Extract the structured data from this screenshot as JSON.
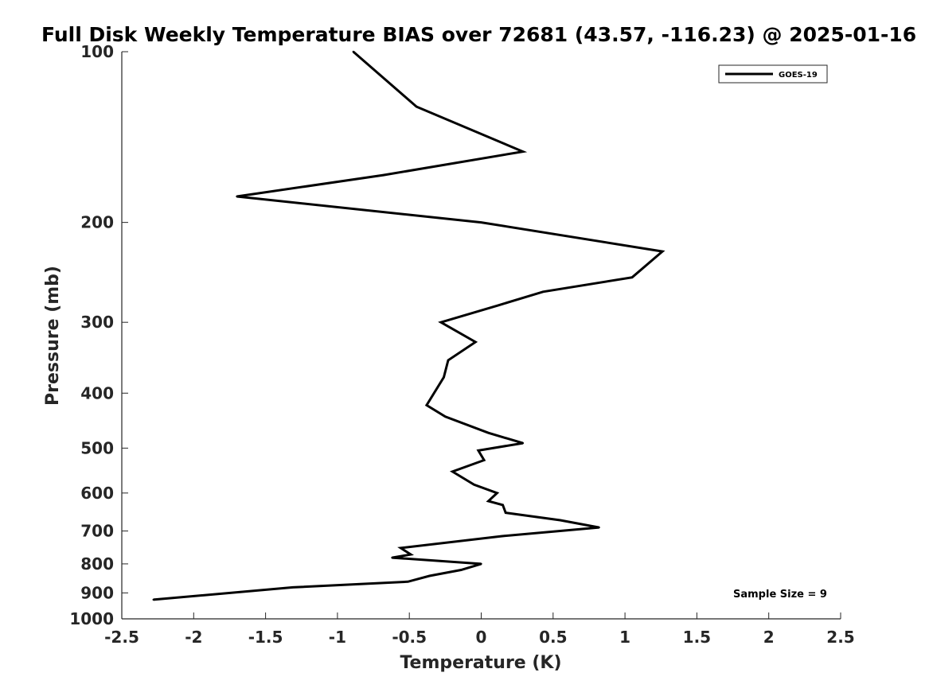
{
  "chart_data": {
    "type": "line",
    "title": "Full Disk Weekly Temperature BIAS over 72681 (43.57, -116.23) @ 2025-01-16",
    "xlabel": "Temperature (K)",
    "ylabel": "Pressure (mb)",
    "xlim": [
      -2.5,
      2.5
    ],
    "ylim": [
      1000,
      100
    ],
    "y_scale": "log",
    "x_ticks": [
      -2.5,
      -2,
      -1.5,
      -1,
      -0.5,
      0,
      0.5,
      1,
      1.5,
      2,
      2.5
    ],
    "x_tick_labels": [
      "-2.5",
      "-2",
      "-1.5",
      "-1",
      "-0.5",
      "0",
      "0.5",
      "1",
      "1.5",
      "2",
      "2.5"
    ],
    "y_ticks": [
      100,
      200,
      300,
      400,
      500,
      600,
      700,
      800,
      900,
      1000
    ],
    "y_tick_labels": [
      "100",
      "200",
      "300",
      "400",
      "500",
      "600",
      "700",
      "800",
      "900",
      "1000"
    ],
    "grid": false,
    "legend_position": "top-right",
    "annotation": "Sample Size = 9",
    "series": [
      {
        "name": "GOES-19",
        "color": "#000000",
        "points": [
          {
            "x": -0.89,
            "p": 100
          },
          {
            "x": -0.45,
            "p": 125
          },
          {
            "x": 0.29,
            "p": 150
          },
          {
            "x": -0.68,
            "p": 165
          },
          {
            "x": -1.7,
            "p": 180
          },
          {
            "x": 0.0,
            "p": 200
          },
          {
            "x": 1.26,
            "p": 225
          },
          {
            "x": 1.05,
            "p": 250
          },
          {
            "x": 0.43,
            "p": 265
          },
          {
            "x": 0.12,
            "p": 280
          },
          {
            "x": -0.28,
            "p": 300
          },
          {
            "x": -0.04,
            "p": 325
          },
          {
            "x": -0.23,
            "p": 350
          },
          {
            "x": -0.26,
            "p": 375
          },
          {
            "x": -0.38,
            "p": 420
          },
          {
            "x": -0.25,
            "p": 440
          },
          {
            "x": 0.05,
            "p": 470
          },
          {
            "x": 0.29,
            "p": 490
          },
          {
            "x": -0.02,
            "p": 505
          },
          {
            "x": 0.02,
            "p": 525
          },
          {
            "x": -0.2,
            "p": 550
          },
          {
            "x": -0.05,
            "p": 580
          },
          {
            "x": 0.11,
            "p": 600
          },
          {
            "x": 0.05,
            "p": 620
          },
          {
            "x": 0.15,
            "p": 630
          },
          {
            "x": 0.17,
            "p": 650
          },
          {
            "x": 0.55,
            "p": 670
          },
          {
            "x": 0.82,
            "p": 690
          },
          {
            "x": 0.14,
            "p": 715
          },
          {
            "x": -0.56,
            "p": 750
          },
          {
            "x": -0.49,
            "p": 770
          },
          {
            "x": -0.62,
            "p": 780
          },
          {
            "x": 0.0,
            "p": 800
          },
          {
            "x": -0.14,
            "p": 820
          },
          {
            "x": -0.36,
            "p": 840
          },
          {
            "x": -0.51,
            "p": 860
          },
          {
            "x": -1.31,
            "p": 880
          },
          {
            "x": -2.28,
            "p": 925
          }
        ]
      }
    ]
  }
}
